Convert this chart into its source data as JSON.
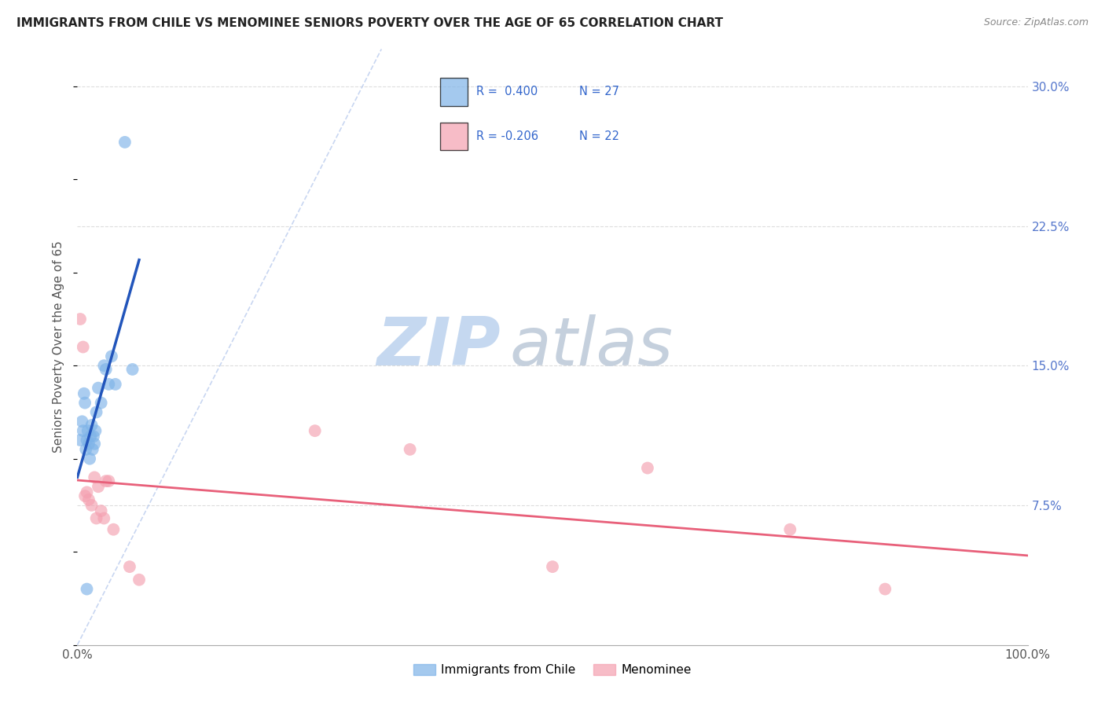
{
  "title": "IMMIGRANTS FROM CHILE VS MENOMINEE SENIORS POVERTY OVER THE AGE OF 65 CORRELATION CHART",
  "source": "Source: ZipAtlas.com",
  "ylabel": "Seniors Poverty Over the Age of 65",
  "xlim": [
    0,
    1.0
  ],
  "ylim": [
    0.0,
    0.32
  ],
  "xticks": [
    0.0,
    0.25,
    0.5,
    0.75,
    1.0
  ],
  "xticklabels": [
    "0.0%",
    "",
    "",
    "",
    "100.0%"
  ],
  "yticks_right": [
    0.0,
    0.075,
    0.15,
    0.225,
    0.3
  ],
  "yticklabels_right": [
    "",
    "7.5%",
    "15.0%",
    "22.5%",
    "30.0%"
  ],
  "blue_color": "#7EB3E8",
  "pink_color": "#F4A0B0",
  "trend_blue": "#2255BB",
  "trend_pink": "#E8607A",
  "diag_color": "#BBCCEE",
  "blue_x": [
    0.003,
    0.005,
    0.006,
    0.007,
    0.008,
    0.009,
    0.01,
    0.011,
    0.012,
    0.013,
    0.014,
    0.015,
    0.016,
    0.017,
    0.018,
    0.019,
    0.02,
    0.022,
    0.025,
    0.028,
    0.03,
    0.033,
    0.036,
    0.04,
    0.05,
    0.058,
    0.01
  ],
  "blue_y": [
    0.11,
    0.12,
    0.115,
    0.135,
    0.13,
    0.105,
    0.11,
    0.115,
    0.108,
    0.1,
    0.112,
    0.118,
    0.105,
    0.112,
    0.108,
    0.115,
    0.125,
    0.138,
    0.13,
    0.15,
    0.148,
    0.14,
    0.155,
    0.14,
    0.27,
    0.148,
    0.03
  ],
  "pink_x": [
    0.003,
    0.006,
    0.008,
    0.01,
    0.012,
    0.015,
    0.018,
    0.02,
    0.022,
    0.025,
    0.028,
    0.03,
    0.033,
    0.038,
    0.055,
    0.065,
    0.25,
    0.35,
    0.5,
    0.6,
    0.75,
    0.85
  ],
  "pink_y": [
    0.175,
    0.16,
    0.08,
    0.082,
    0.078,
    0.075,
    0.09,
    0.068,
    0.085,
    0.072,
    0.068,
    0.088,
    0.088,
    0.062,
    0.042,
    0.035,
    0.115,
    0.105,
    0.042,
    0.095,
    0.062,
    0.03
  ],
  "grid_color": "#DDDDDD",
  "watermark_zip_color": "#C5D8F0",
  "watermark_atlas_color": "#C5D0DD",
  "legend_box_color": "#EEEEFF",
  "r1_text": "R =  0.400",
  "n1_text": "N = 27",
  "r2_text": "R = -0.206",
  "n2_text": "N = 22"
}
